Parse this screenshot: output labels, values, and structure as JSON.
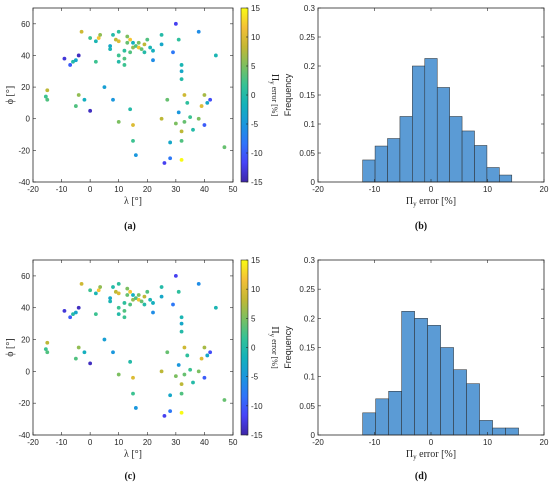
{
  "colors": {
    "bar_fill": "#5b9bd5",
    "bar_edge": "#2a2a2a",
    "axis": "#262626"
  },
  "colormap": [
    "#3e26a8",
    "#4743f8",
    "#2f74fa",
    "#1a97dd",
    "#14b2ba",
    "#35c296",
    "#7cbf60",
    "#c4b733",
    "#f4c037",
    "#f9fb14"
  ],
  "chart_data": [
    {
      "type": "scatter",
      "caption": "(a)",
      "xlabel": "λ [°]",
      "ylabel": "ϕ [°]",
      "xlim": [
        -20,
        50
      ],
      "ylim": [
        -40,
        70
      ],
      "xticks": [
        -20,
        -10,
        0,
        10,
        20,
        30,
        40,
        50
      ],
      "yticks": [
        -40,
        -20,
        0,
        20,
        40,
        60
      ],
      "colorbar": {
        "label": "Π_y error [%]",
        "label_main": "Π",
        "label_sub": "y",
        "label_rest": " error [%]",
        "ticks": [
          -15,
          -10,
          -5,
          0,
          5,
          10,
          15
        ],
        "lim": [
          -15,
          15
        ]
      },
      "points": [
        {
          "x": -15,
          "y": 18,
          "c": 8
        },
        {
          "x": -15.5,
          "y": 14,
          "c": 2
        },
        {
          "x": -15,
          "y": 12,
          "c": 3
        },
        {
          "x": -9,
          "y": 38,
          "c": -13
        },
        {
          "x": -7,
          "y": 34,
          "c": -10
        },
        {
          "x": -6,
          "y": 36,
          "c": 0
        },
        {
          "x": -5,
          "y": 37,
          "c": -3
        },
        {
          "x": -4,
          "y": 40,
          "c": -14
        },
        {
          "x": -3,
          "y": 55,
          "c": 9
        },
        {
          "x": -5,
          "y": 8,
          "c": 3
        },
        {
          "x": -4,
          "y": 15,
          "c": 6
        },
        {
          "x": -2,
          "y": 12,
          "c": -2
        },
        {
          "x": 0,
          "y": 5,
          "c": -14
        },
        {
          "x": 0,
          "y": 51,
          "c": 2
        },
        {
          "x": 2,
          "y": 49,
          "c": -1
        },
        {
          "x": 2,
          "y": 36,
          "c": 2
        },
        {
          "x": 3,
          "y": 51,
          "c": 12
        },
        {
          "x": 3.5,
          "y": 53,
          "c": 6
        },
        {
          "x": 5,
          "y": 20,
          "c": -4
        },
        {
          "x": 7,
          "y": 46,
          "c": -3
        },
        {
          "x": 7,
          "y": 44,
          "c": -1
        },
        {
          "x": 8,
          "y": 53,
          "c": 0
        },
        {
          "x": 8,
          "y": 12,
          "c": -5
        },
        {
          "x": 9,
          "y": 50,
          "c": 8
        },
        {
          "x": 10,
          "y": 49,
          "c": 10
        },
        {
          "x": 10,
          "y": 55,
          "c": 1
        },
        {
          "x": 10,
          "y": 40,
          "c": 2
        },
        {
          "x": 10,
          "y": 36,
          "c": 0
        },
        {
          "x": 10,
          "y": -2,
          "c": 5
        },
        {
          "x": 12,
          "y": 43,
          "c": 1
        },
        {
          "x": 12,
          "y": 38,
          "c": 3
        },
        {
          "x": 12,
          "y": 34,
          "c": 2
        },
        {
          "x": 13,
          "y": 48,
          "c": 4
        },
        {
          "x": 13,
          "y": 52,
          "c": 5
        },
        {
          "x": 14,
          "y": 50,
          "c": 12
        },
        {
          "x": 14,
          "y": 42,
          "c": 3
        },
        {
          "x": 14,
          "y": 6,
          "c": 0
        },
        {
          "x": 15,
          "y": 48,
          "c": -2
        },
        {
          "x": 15,
          "y": 45,
          "c": 6
        },
        {
          "x": 15,
          "y": -4,
          "c": 10
        },
        {
          "x": 15,
          "y": -14,
          "c": 2
        },
        {
          "x": 16,
          "y": 46,
          "c": 3
        },
        {
          "x": 16,
          "y": -23,
          "c": -5
        },
        {
          "x": 17,
          "y": 45,
          "c": 12
        },
        {
          "x": 17,
          "y": 48,
          "c": 5
        },
        {
          "x": 18,
          "y": 44,
          "c": 4
        },
        {
          "x": 19,
          "y": 47,
          "c": 8
        },
        {
          "x": 19,
          "y": 42,
          "c": 0
        },
        {
          "x": 20,
          "y": 50,
          "c": 3
        },
        {
          "x": 21,
          "y": 45,
          "c": -1
        },
        {
          "x": 22,
          "y": 43,
          "c": -2
        },
        {
          "x": 22,
          "y": 37,
          "c": -6
        },
        {
          "x": 25,
          "y": 53,
          "c": 0
        },
        {
          "x": 25,
          "y": 47,
          "c": -3
        },
        {
          "x": 25,
          "y": 0,
          "c": 8
        },
        {
          "x": 26,
          "y": -28,
          "c": -12
        },
        {
          "x": 27,
          "y": 12,
          "c": 4
        },
        {
          "x": 28,
          "y": -15,
          "c": -3
        },
        {
          "x": 28,
          "y": -25,
          "c": -8
        },
        {
          "x": 29,
          "y": 42,
          "c": -8
        },
        {
          "x": 30,
          "y": 60,
          "c": -12
        },
        {
          "x": 30,
          "y": -3,
          "c": 5
        },
        {
          "x": 31,
          "y": 50,
          "c": 1
        },
        {
          "x": 31,
          "y": 4,
          "c": -5
        },
        {
          "x": 32,
          "y": 34,
          "c": -1
        },
        {
          "x": 32,
          "y": 30,
          "c": -3
        },
        {
          "x": 32,
          "y": 25,
          "c": 0
        },
        {
          "x": 32,
          "y": -8,
          "c": 8
        },
        {
          "x": 32,
          "y": -14,
          "c": 3
        },
        {
          "x": 32,
          "y": -26,
          "c": 15
        },
        {
          "x": 33,
          "y": 15,
          "c": 9
        },
        {
          "x": 33,
          "y": -2,
          "c": 4
        },
        {
          "x": 34,
          "y": 10,
          "c": 1
        },
        {
          "x": 35,
          "y": 1,
          "c": 2
        },
        {
          "x": 36,
          "y": -7,
          "c": 0
        },
        {
          "x": 38,
          "y": 55,
          "c": -6
        },
        {
          "x": 38,
          "y": 0,
          "c": 5
        },
        {
          "x": 39,
          "y": 8,
          "c": 10
        },
        {
          "x": 40,
          "y": -4,
          "c": -10
        },
        {
          "x": 40,
          "y": 15,
          "c": 7
        },
        {
          "x": 41,
          "y": 10,
          "c": -3
        },
        {
          "x": 42,
          "y": 12,
          "c": -11
        },
        {
          "x": 44,
          "y": 40,
          "c": -1
        },
        {
          "x": 47,
          "y": -18,
          "c": 4
        }
      ]
    },
    {
      "type": "bar",
      "caption": "(b)",
      "xlabel": "Π_y error [%]",
      "xlabel_main": "Π",
      "xlabel_sub": "y",
      "xlabel_rest": " error [%]",
      "ylabel": "Frequency",
      "xlim": [
        -20,
        20
      ],
      "ylim": [
        0,
        0.3
      ],
      "xticks": [
        -20,
        -10,
        0,
        10,
        20
      ],
      "yticks": [
        "0",
        "0.05",
        "0.1",
        "0.15",
        "0.2",
        "0.25",
        "0.3"
      ],
      "bin_width": 2.2,
      "bin_edges": [
        -12.1,
        -9.9,
        -7.7,
        -5.5,
        -3.3,
        -1.1,
        1.1,
        3.3,
        5.5,
        7.7,
        9.9,
        12.1,
        14.3
      ],
      "values": [
        0.038,
        0.062,
        0.075,
        0.113,
        0.2,
        0.213,
        0.163,
        0.113,
        0.088,
        0.063,
        0.025,
        0.012
      ]
    },
    {
      "type": "scatter",
      "caption": "(c)",
      "xlabel": "λ [°]",
      "ylabel": "ϕ [°]",
      "xlim": [
        -20,
        50
      ],
      "ylim": [
        -40,
        70
      ],
      "xticks": [
        -20,
        -10,
        0,
        10,
        20,
        30,
        40,
        50
      ],
      "yticks": [
        -40,
        -20,
        0,
        20,
        40,
        60
      ],
      "colorbar": {
        "label": "Π_y error [%]",
        "label_main": "Π",
        "label_sub": "y",
        "label_rest": " error [%]",
        "ticks": [
          -15,
          -10,
          -5,
          0,
          5,
          10,
          15
        ],
        "lim": [
          -15,
          15
        ]
      },
      "points": [
        {
          "x": -15,
          "y": 18,
          "c": 8
        },
        {
          "x": -15.5,
          "y": 14,
          "c": 2
        },
        {
          "x": -15,
          "y": 12,
          "c": 3
        },
        {
          "x": -9,
          "y": 38,
          "c": -13
        },
        {
          "x": -7,
          "y": 34,
          "c": -10
        },
        {
          "x": -6,
          "y": 36,
          "c": 0
        },
        {
          "x": -5,
          "y": 37,
          "c": -3
        },
        {
          "x": -4,
          "y": 40,
          "c": -14
        },
        {
          "x": -3,
          "y": 55,
          "c": 9
        },
        {
          "x": -5,
          "y": 8,
          "c": 3
        },
        {
          "x": -4,
          "y": 15,
          "c": 6
        },
        {
          "x": -2,
          "y": 12,
          "c": -2
        },
        {
          "x": 0,
          "y": 5,
          "c": -14
        },
        {
          "x": 0,
          "y": 51,
          "c": 2
        },
        {
          "x": 2,
          "y": 49,
          "c": -1
        },
        {
          "x": 2,
          "y": 36,
          "c": 2
        },
        {
          "x": 3,
          "y": 51,
          "c": 12
        },
        {
          "x": 3.5,
          "y": 53,
          "c": 6
        },
        {
          "x": 5,
          "y": 20,
          "c": -4
        },
        {
          "x": 7,
          "y": 46,
          "c": -3
        },
        {
          "x": 7,
          "y": 44,
          "c": -1
        },
        {
          "x": 8,
          "y": 53,
          "c": 0
        },
        {
          "x": 8,
          "y": 12,
          "c": -5
        },
        {
          "x": 9,
          "y": 50,
          "c": 8
        },
        {
          "x": 10,
          "y": 49,
          "c": 10
        },
        {
          "x": 10,
          "y": 55,
          "c": 1
        },
        {
          "x": 10,
          "y": 40,
          "c": 2
        },
        {
          "x": 10,
          "y": 36,
          "c": 0
        },
        {
          "x": 10,
          "y": -2,
          "c": 5
        },
        {
          "x": 12,
          "y": 43,
          "c": 1
        },
        {
          "x": 12,
          "y": 38,
          "c": 3
        },
        {
          "x": 12,
          "y": 34,
          "c": 2
        },
        {
          "x": 13,
          "y": 48,
          "c": 4
        },
        {
          "x": 13,
          "y": 52,
          "c": 5
        },
        {
          "x": 14,
          "y": 50,
          "c": 12
        },
        {
          "x": 14,
          "y": 42,
          "c": 3
        },
        {
          "x": 14,
          "y": 6,
          "c": 0
        },
        {
          "x": 15,
          "y": 48,
          "c": -2
        },
        {
          "x": 15,
          "y": 45,
          "c": 6
        },
        {
          "x": 15,
          "y": -4,
          "c": 10
        },
        {
          "x": 15,
          "y": -14,
          "c": 2
        },
        {
          "x": 16,
          "y": 46,
          "c": 3
        },
        {
          "x": 16,
          "y": -23,
          "c": -5
        },
        {
          "x": 17,
          "y": 45,
          "c": 12
        },
        {
          "x": 17,
          "y": 48,
          "c": 5
        },
        {
          "x": 18,
          "y": 44,
          "c": 4
        },
        {
          "x": 19,
          "y": 47,
          "c": 8
        },
        {
          "x": 19,
          "y": 42,
          "c": 0
        },
        {
          "x": 20,
          "y": 50,
          "c": 3
        },
        {
          "x": 21,
          "y": 45,
          "c": -1
        },
        {
          "x": 22,
          "y": 43,
          "c": -2
        },
        {
          "x": 22,
          "y": 37,
          "c": -6
        },
        {
          "x": 25,
          "y": 53,
          "c": 0
        },
        {
          "x": 25,
          "y": 47,
          "c": -3
        },
        {
          "x": 25,
          "y": 0,
          "c": 8
        },
        {
          "x": 26,
          "y": -28,
          "c": -12
        },
        {
          "x": 27,
          "y": 12,
          "c": 4
        },
        {
          "x": 28,
          "y": -15,
          "c": -3
        },
        {
          "x": 28,
          "y": -25,
          "c": -8
        },
        {
          "x": 29,
          "y": 42,
          "c": -8
        },
        {
          "x": 30,
          "y": 60,
          "c": -12
        },
        {
          "x": 30,
          "y": -3,
          "c": 5
        },
        {
          "x": 31,
          "y": 50,
          "c": 1
        },
        {
          "x": 31,
          "y": 4,
          "c": -5
        },
        {
          "x": 32,
          "y": 34,
          "c": -1
        },
        {
          "x": 32,
          "y": 30,
          "c": -3
        },
        {
          "x": 32,
          "y": 25,
          "c": 0
        },
        {
          "x": 32,
          "y": -8,
          "c": 8
        },
        {
          "x": 32,
          "y": -14,
          "c": 3
        },
        {
          "x": 32,
          "y": -26,
          "c": 15
        },
        {
          "x": 33,
          "y": 15,
          "c": 9
        },
        {
          "x": 33,
          "y": -2,
          "c": 4
        },
        {
          "x": 34,
          "y": 10,
          "c": 1
        },
        {
          "x": 35,
          "y": 1,
          "c": 2
        },
        {
          "x": 36,
          "y": -7,
          "c": 0
        },
        {
          "x": 38,
          "y": 55,
          "c": -6
        },
        {
          "x": 38,
          "y": 0,
          "c": 5
        },
        {
          "x": 39,
          "y": 8,
          "c": 10
        },
        {
          "x": 40,
          "y": -4,
          "c": -10
        },
        {
          "x": 40,
          "y": 15,
          "c": 7
        },
        {
          "x": 41,
          "y": 10,
          "c": -3
        },
        {
          "x": 42,
          "y": 12,
          "c": -11
        },
        {
          "x": 44,
          "y": 40,
          "c": -1
        },
        {
          "x": 47,
          "y": -18,
          "c": 4
        }
      ]
    },
    {
      "type": "bar",
      "caption": "(d)",
      "xlabel": "Π_y error [%]",
      "xlabel_main": "Π",
      "xlabel_sub": "y",
      "xlabel_rest": " error [%]",
      "ylabel": "Frequency",
      "xlim": [
        -20,
        20
      ],
      "ylim": [
        0,
        0.3
      ],
      "xticks": [
        -20,
        -10,
        0,
        10,
        20
      ],
      "yticks": [
        "0",
        "0.05",
        "0.1",
        "0.15",
        "0.2",
        "0.25",
        "0.3"
      ],
      "bin_width": 2.3,
      "bin_edges": [
        -12.1,
        -9.8,
        -7.5,
        -5.2,
        -2.9,
        -0.6,
        1.7,
        4.0,
        6.3,
        8.6,
        10.9,
        13.2,
        15.5
      ],
      "values": [
        0.038,
        0.062,
        0.075,
        0.212,
        0.2,
        0.188,
        0.15,
        0.112,
        0.088,
        0.025,
        0.012,
        0.012
      ]
    }
  ]
}
